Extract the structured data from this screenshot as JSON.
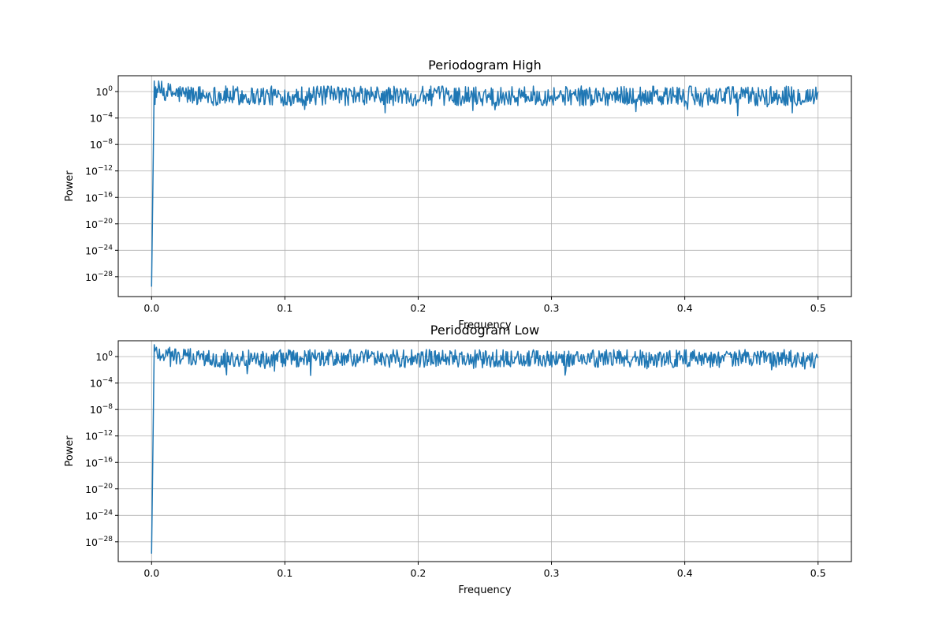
{
  "chart_data": [
    {
      "type": "line",
      "title": "Periodogram High",
      "xlabel": "Frequency",
      "ylabel": "Power",
      "yscale": "log",
      "xlim": [
        -0.025,
        0.525
      ],
      "ylim_exponents": [
        -31,
        2.4
      ],
      "grid": true,
      "color": "#1f77b4",
      "x_ticks": [
        "0.0",
        "0.1",
        "0.2",
        "0.3",
        "0.4",
        "0.5"
      ],
      "x_tick_values": [
        0,
        0.1,
        0.2,
        0.3,
        0.4,
        0.5
      ],
      "y_ticks": [
        {
          "base": "10",
          "exp": "0",
          "value": 0
        },
        {
          "base": "10",
          "exp": "−4",
          "value": -4
        },
        {
          "base": "10",
          "exp": "−8",
          "value": -8
        },
        {
          "base": "10",
          "exp": "−12",
          "value": -12
        },
        {
          "base": "10",
          "exp": "−16",
          "value": -16
        },
        {
          "base": "10",
          "exp": "−20",
          "value": -20
        },
        {
          "base": "10",
          "exp": "−24",
          "value": -24
        },
        {
          "base": "10",
          "exp": "−28",
          "value": -28
        }
      ],
      "series_summary": {
        "first_point": {
          "x": 0.0,
          "log10_power": -29.5
        },
        "peak_near_origin": {
          "x": 0.002,
          "log10_power": 1.6
        },
        "noise_band_log10_power": [
          -2.0,
          1.0
        ],
        "notable_dips": [
          {
            "x": 0.115,
            "log10_power": -2.7
          },
          {
            "x": 0.175,
            "log10_power": -3.2
          },
          {
            "x": 0.4,
            "log10_power": -2.2
          },
          {
            "x": 0.462,
            "log10_power": -2.3
          }
        ],
        "x_end": 0.5
      }
    },
    {
      "type": "line",
      "title": "Periodogram Low",
      "xlabel": "Frequency",
      "ylabel": "Power",
      "yscale": "log",
      "xlim": [
        -0.025,
        0.525
      ],
      "ylim_exponents": [
        -31,
        2.4
      ],
      "grid": true,
      "color": "#1f77b4",
      "x_ticks": [
        "0.0",
        "0.1",
        "0.2",
        "0.3",
        "0.4",
        "0.5"
      ],
      "x_tick_values": [
        0,
        0.1,
        0.2,
        0.3,
        0.4,
        0.5
      ],
      "y_ticks": [
        {
          "base": "10",
          "exp": "0",
          "value": 0
        },
        {
          "base": "10",
          "exp": "−4",
          "value": -4
        },
        {
          "base": "10",
          "exp": "−8",
          "value": -8
        },
        {
          "base": "10",
          "exp": "−12",
          "value": -12
        },
        {
          "base": "10",
          "exp": "−16",
          "value": -16
        },
        {
          "base": "10",
          "exp": "−20",
          "value": -20
        },
        {
          "base": "10",
          "exp": "−24",
          "value": -24
        },
        {
          "base": "10",
          "exp": "−28",
          "value": -28
        }
      ],
      "series_summary": {
        "first_point": {
          "x": 0.0,
          "log10_power": -29.8
        },
        "peak_near_origin": {
          "x": 0.002,
          "log10_power": 1.8
        },
        "noise_band_log10_power": [
          -1.5,
          1.2
        ],
        "notable_dips": [
          {
            "x": 0.085,
            "log10_power": -1.8
          },
          {
            "x": 0.31,
            "log10_power": -2.8
          },
          {
            "x": 0.465,
            "log10_power": -2.0
          },
          {
            "x": 0.497,
            "log10_power": -1.7
          }
        ],
        "x_end": 0.5
      }
    }
  ]
}
